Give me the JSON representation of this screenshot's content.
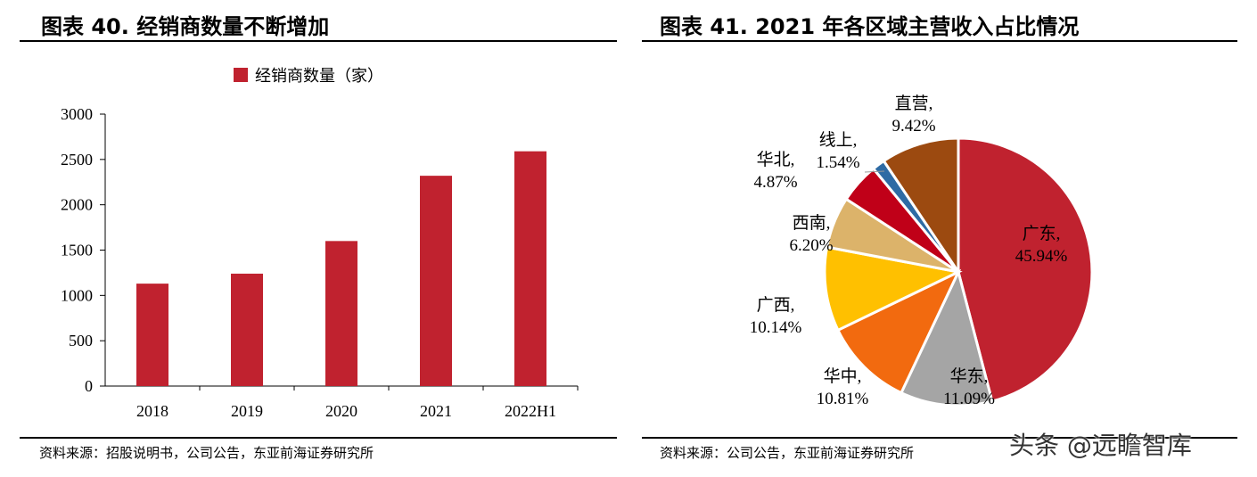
{
  "left": {
    "title": "图表 40. 经销商数量不断增加",
    "source": "资料来源：招股说明书，公司公告，东亚前海证券研究所"
  },
  "right": {
    "title": "图表 41. 2021 年各区域主营收入占比情况",
    "source": "资料来源：公司公告，东亚前海证券研究所"
  },
  "watermark": "头条 @远瞻智库",
  "chart_data": [
    {
      "type": "bar",
      "title": "图表 40. 经销商数量不断增加",
      "categories": [
        "2018",
        "2019",
        "2020",
        "2021",
        "2022H1"
      ],
      "series": [
        {
          "name": "经销商数量（家）",
          "values": [
            1130,
            1240,
            1600,
            2320,
            2590
          ],
          "color": "#c0222f"
        }
      ],
      "ylim": [
        0,
        3000
      ],
      "yticks": [
        "0",
        "500",
        "1000",
        "1500",
        "2000",
        "2500",
        "3000"
      ],
      "legend": "top-center",
      "grid": false
    },
    {
      "type": "pie",
      "title": "图表 41. 2021 年各区域主营收入占比情况",
      "slices": [
        {
          "name": "广东",
          "pct": "45.94%",
          "value": 45.94,
          "color": "#c0222f"
        },
        {
          "name": "华东",
          "pct": "11.09%",
          "value": 11.09,
          "color": "#a5a5a5"
        },
        {
          "name": "华中",
          "pct": "10.81%",
          "value": 10.81,
          "color": "#f26a0f"
        },
        {
          "name": "广西",
          "pct": "10.14%",
          "value": 10.14,
          "color": "#ffc000"
        },
        {
          "name": "西南",
          "pct": "6.20%",
          "value": 6.2,
          "color": "#dcb36a"
        },
        {
          "name": "华北",
          "pct": "4.87%",
          "value": 4.87,
          "color": "#c00018"
        },
        {
          "name": "线上",
          "pct": "1.54%",
          "value": 1.54,
          "color": "#2e6ba4"
        },
        {
          "name": "直营",
          "pct": "9.42%",
          "value": 9.42,
          "color": "#9c4a10"
        }
      ]
    }
  ]
}
